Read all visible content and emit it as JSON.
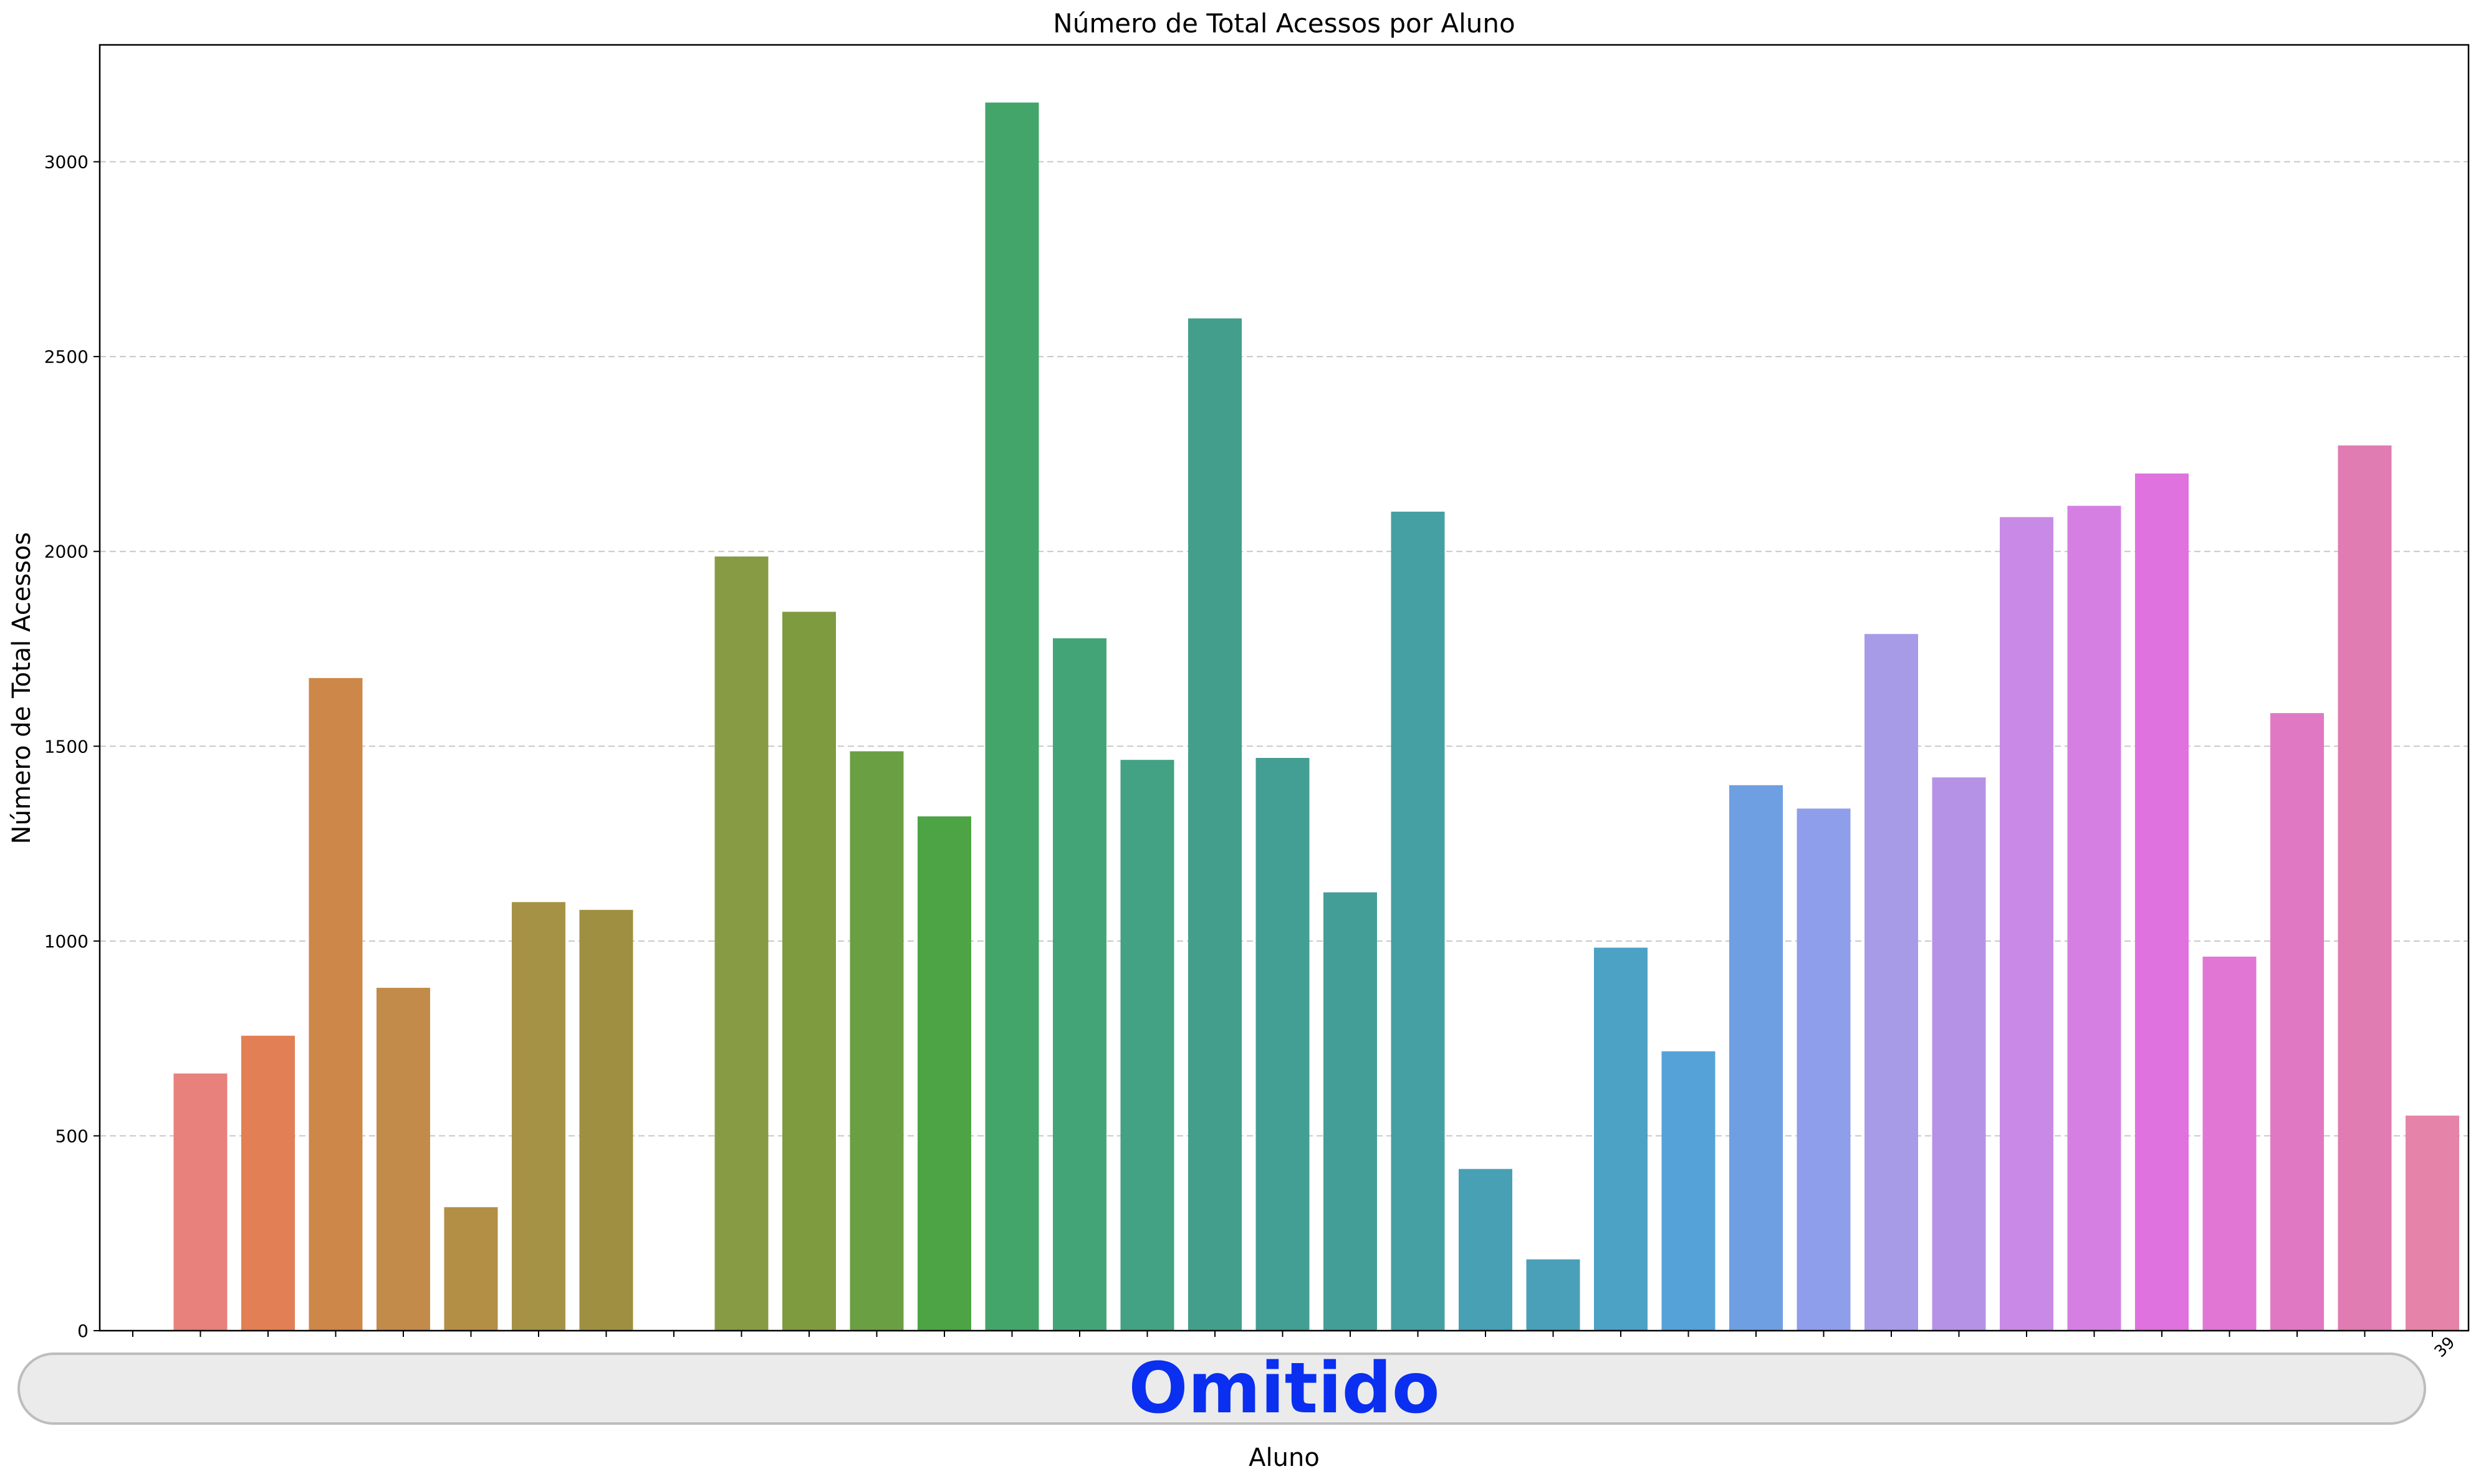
{
  "chart_data": {
    "type": "bar",
    "title": "Número de Total Acessos por Aluno",
    "xlabel": "Aluno",
    "ylabel": "Número de Total Acessos",
    "ylim": [
      0,
      3300
    ],
    "yticks": [
      0,
      500,
      1000,
      1500,
      2000,
      2500,
      3000
    ],
    "grid": "y-dashed",
    "visible_tick_fragment": "39",
    "values": [
      0,
      660,
      757,
      1675,
      880,
      317,
      1100,
      1080,
      0,
      1987,
      1845,
      1487,
      1320,
      3152,
      1777,
      1465,
      2598,
      1470,
      1125,
      2102,
      415,
      183,
      983,
      717,
      1400,
      1340,
      1788,
      1420,
      2088,
      2117,
      2200,
      960,
      1585,
      2272,
      552
    ],
    "colors": [
      "#e8807c",
      "#e8807c",
      "#e27f54",
      "#cd8748",
      "#c28b4a",
      "#b38f45",
      "#a69244",
      "#9e9040",
      "#929440",
      "#879b44",
      "#7e9b40",
      "#6b9f43",
      "#4ca444",
      "#43a56a",
      "#43a577",
      "#43a283",
      "#439f8c",
      "#439e93",
      "#439e98",
      "#45a0a4",
      "#47a0b4",
      "#49a0b8",
      "#4ba2c5",
      "#55a2d8",
      "#6e9fe2",
      "#8f9eea",
      "#a79be8",
      "#b592e6",
      "#c88ae6",
      "#d57fe3",
      "#df72de",
      "#e176d5",
      "#e178c4",
      "#e07cb2",
      "#e683a8"
    ]
  },
  "omitted_overlay": {
    "label": "Omitido",
    "color": "#0a2ff0"
  }
}
